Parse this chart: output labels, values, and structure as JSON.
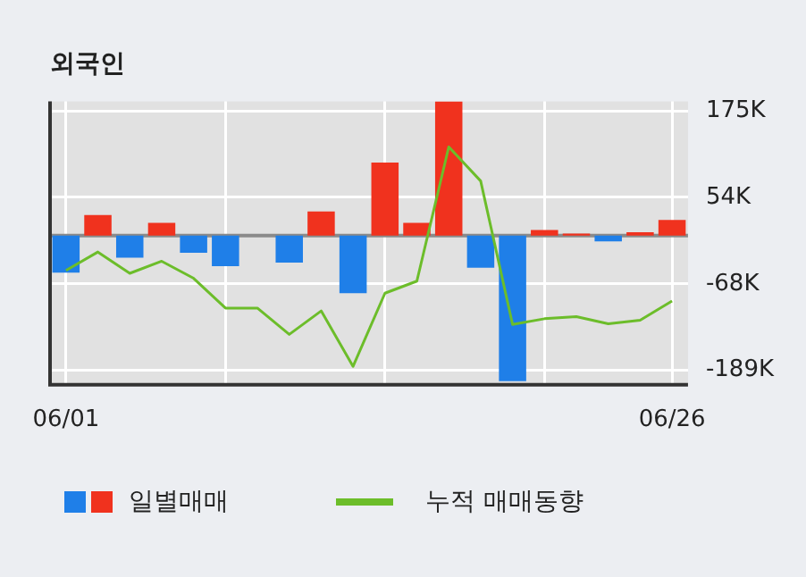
{
  "chart_data": {
    "type": "bar",
    "title": "외국인",
    "categories": [
      "06/01",
      null,
      null,
      null,
      null,
      null,
      null,
      null,
      null,
      null,
      null,
      null,
      null,
      null,
      null,
      null,
      null,
      null,
      null,
      "06/26"
    ],
    "series": [
      {
        "name": "일별매매",
        "colors": [
          "#1f7fe8",
          "#f0321e",
          "#1f7fe8",
          "#f0321e",
          "#1f7fe8",
          "#1f7fe8",
          "#1f7fe8",
          "#1f7fe8",
          "#f0321e",
          "#1f7fe8",
          "#f0321e",
          "#f0321e",
          "#f0321e",
          "#1f7fe8",
          "#1f7fe8",
          "#f0321e",
          "#f0321e",
          "#1f7fe8",
          "#f0321e",
          "#f0321e"
        ],
        "values": [
          -52,
          29,
          -31,
          18,
          -24,
          -43,
          0,
          -38,
          34,
          -81,
          103,
          18,
          189,
          -45,
          -205,
          8,
          3,
          -8,
          5,
          22
        ]
      },
      {
        "name": "누적 매매동향",
        "type": "line",
        "color": "#6cbd2a",
        "values": [
          -49,
          -23,
          -53,
          -36,
          -60,
          -102,
          -102,
          -139,
          -106,
          -184,
          -81,
          -64,
          125,
          77,
          -125,
          -117,
          -114,
          -124,
          -119,
          -92
        ]
      }
    ],
    "ylim": [
      -210,
      189
    ],
    "yticks": [
      {
        "value": 175,
        "label": "175K"
      },
      {
        "value": 54,
        "label": "54K"
      },
      {
        "value": -68,
        "label": "-68K"
      },
      {
        "value": -189,
        "label": "-189K"
      }
    ],
    "grid": true,
    "legend": "bottom",
    "marker": "none",
    "line_style": "solid"
  }
}
